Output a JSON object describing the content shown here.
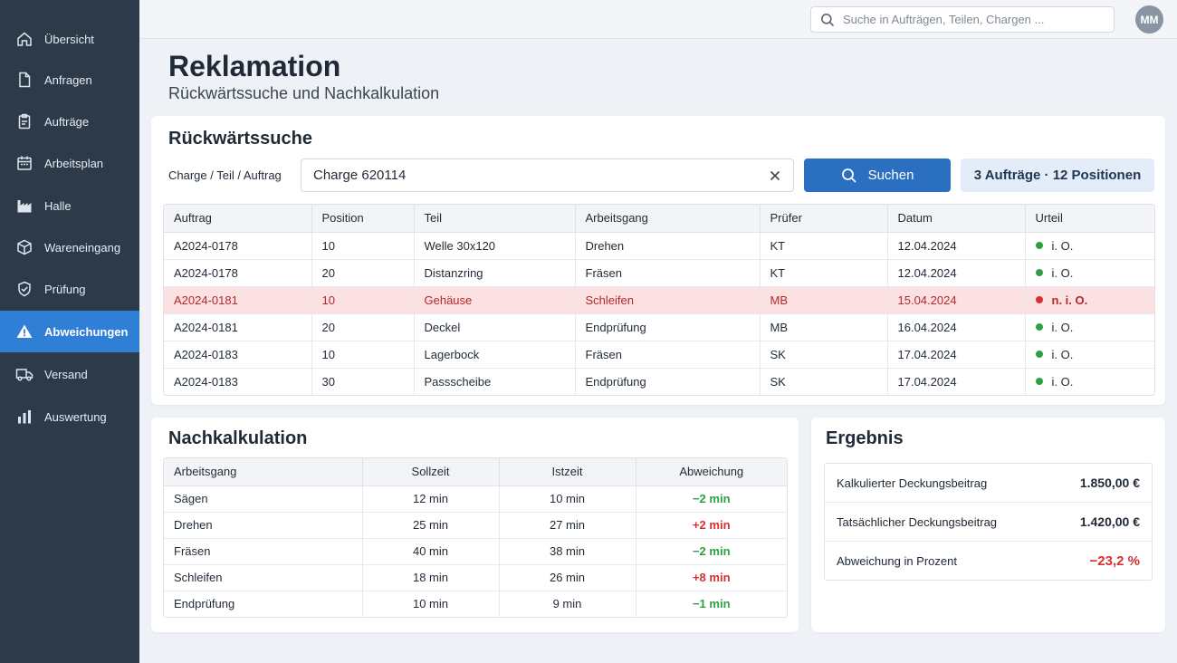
{
  "sidebar": {
    "items": [
      {
        "label": "Übersicht",
        "icon": "home-icon",
        "active": false
      },
      {
        "label": "Anfragen",
        "icon": "document-icon",
        "active": false
      },
      {
        "label": "Aufträge",
        "icon": "clipboard-icon",
        "active": false
      },
      {
        "label": "Arbeitsplan",
        "icon": "calendar-icon",
        "active": false
      },
      {
        "label": "Halle",
        "icon": "factory-icon",
        "active": false
      },
      {
        "label": "Wareneingang",
        "icon": "box-icon",
        "active": false
      },
      {
        "label": "Prüfung",
        "icon": "shield-icon",
        "active": false
      },
      {
        "label": "Abweichungen",
        "icon": "warning-icon",
        "active": true
      },
      {
        "label": "Versand",
        "icon": "truck-icon",
        "active": false
      },
      {
        "label": "Auswertung",
        "icon": "bar-chart-icon",
        "active": false
      }
    ]
  },
  "topbar": {
    "search_placeholder": "Suche in Aufträgen, Teilen, Chargen ...",
    "avatar_initials": "MM"
  },
  "header": {
    "title": "Reklamation",
    "subtitle": "Rückwärtssuche und Nachkalkulation"
  },
  "reverse_search": {
    "title": "Rückwärtssuche",
    "field_label": "Charge / Teil / Auftrag",
    "input_value": "Charge 620114",
    "search_button": "Suchen",
    "result_summary": "3 Aufträge · 12 Positionen",
    "columns": [
      "Auftrag",
      "Position",
      "Teil",
      "Arbeitsgang",
      "Prüfer",
      "Datum",
      "Urteil"
    ],
    "rows": [
      {
        "order": "A2024-0178",
        "position": "10",
        "part": "Welle 30x120",
        "operation": "Drehen",
        "inspector": "KT",
        "date": "12.04.2024",
        "verdict": "i. O.",
        "status": "ok"
      },
      {
        "order": "A2024-0178",
        "position": "20",
        "part": "Distanzring",
        "operation": "Fräsen",
        "inspector": "KT",
        "date": "12.04.2024",
        "verdict": "i. O.",
        "status": "ok"
      },
      {
        "order": "A2024-0181",
        "position": "10",
        "part": "Gehäuse",
        "operation": "Schleifen",
        "inspector": "MB",
        "date": "15.04.2024",
        "verdict": "n. i. O.",
        "status": "fail"
      },
      {
        "order": "A2024-0181",
        "position": "20",
        "part": "Deckel",
        "operation": "Endprüfung",
        "inspector": "MB",
        "date": "16.04.2024",
        "verdict": "i. O.",
        "status": "ok"
      },
      {
        "order": "A2024-0183",
        "position": "10",
        "part": "Lagerbock",
        "operation": "Fräsen",
        "inspector": "SK",
        "date": "17.04.2024",
        "verdict": "i. O.",
        "status": "ok"
      },
      {
        "order": "A2024-0183",
        "position": "30",
        "part": "Passscheibe",
        "operation": "Endprüfung",
        "inspector": "SK",
        "date": "17.04.2024",
        "verdict": "i. O.",
        "status": "ok"
      }
    ]
  },
  "calculation": {
    "title": "Nachkalkulation",
    "columns": [
      "Arbeitsgang",
      "Sollzeit",
      "Istzeit",
      "Abweichung"
    ],
    "rows": [
      {
        "operation": "Sägen",
        "planned": "12 min",
        "actual": "10 min",
        "deviation": "−2 min",
        "trend": "under"
      },
      {
        "operation": "Drehen",
        "planned": "25 min",
        "actual": "27 min",
        "deviation": "+2 min",
        "trend": "over"
      },
      {
        "operation": "Fräsen",
        "planned": "40 min",
        "actual": "38 min",
        "deviation": "−2 min",
        "trend": "under"
      },
      {
        "operation": "Schleifen",
        "planned": "18 min",
        "actual": "26 min",
        "deviation": "+8 min",
        "trend": "over"
      },
      {
        "operation": "Endprüfung",
        "planned": "10 min",
        "actual": "9 min",
        "deviation": "−1 min",
        "trend": "under"
      }
    ]
  },
  "result": {
    "title": "Ergebnis",
    "rows": [
      {
        "label": "Kalkulierter Deckungsbeitrag",
        "value": "1.850,00 €",
        "negative": false
      },
      {
        "label": "Tatsächlicher Deckungsbeitrag",
        "value": "1.420,00 €",
        "negative": false
      },
      {
        "label": "Abweichung in Prozent",
        "value": "−23,2 %",
        "negative": true
      }
    ]
  },
  "colors": {
    "sidebar_bg": "#2d3a4a",
    "accent": "#2f7fd6",
    "ok": "#2ea043",
    "fail": "#d63031",
    "fail_row_bg": "#fbe1e1"
  }
}
